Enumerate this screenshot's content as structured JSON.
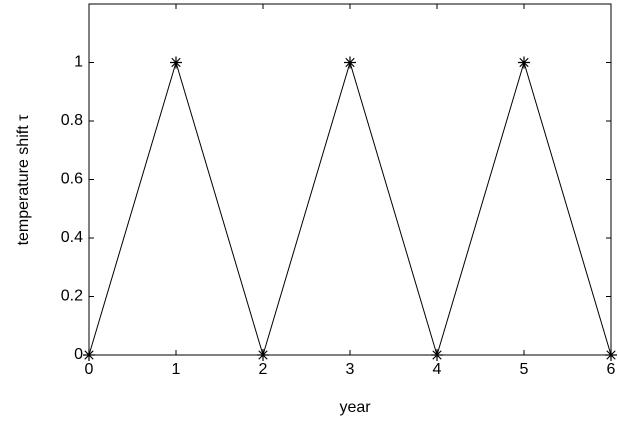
{
  "chart_data": {
    "type": "line",
    "x_label": "year",
    "y_label": "temperature shift τ",
    "x": [
      0,
      1,
      2,
      3,
      4,
      5,
      6
    ],
    "series": [
      {
        "color": "#000000",
        "marker": "asterisk",
        "values": [
          0,
          1,
          0,
          1,
          0,
          1,
          0
        ]
      }
    ],
    "xlim": [
      0,
      6
    ],
    "xticks": [
      0,
      1,
      2,
      3,
      4,
      5,
      6
    ],
    "ylim": [
      0,
      1.2
    ],
    "yticks": [
      0,
      0.2,
      0.4,
      0.6,
      0.8,
      1
    ],
    "grid": false
  }
}
